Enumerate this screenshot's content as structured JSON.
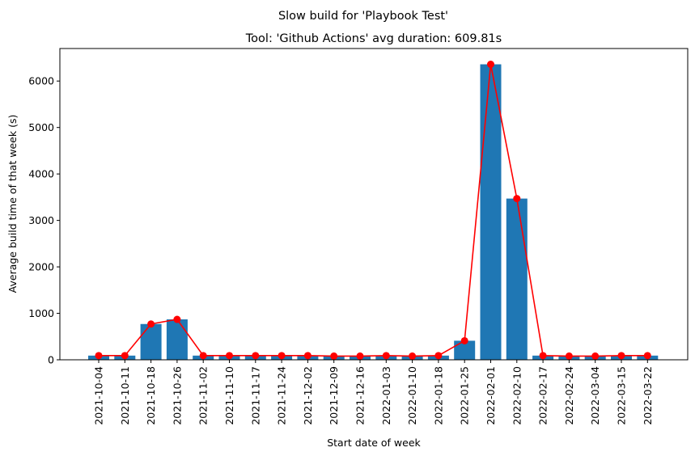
{
  "chart_data": {
    "type": "bar",
    "suptitle": "Slow build for 'Playbook Test'",
    "title": "Tool: 'Github Actions' avg duration: 609.81s",
    "xlabel": "Start date of week",
    "ylabel": "Average build time of that week (s)",
    "ylim": [
      0,
      6700
    ],
    "yticks": [
      0,
      1000,
      2000,
      3000,
      4000,
      5000,
      6000
    ],
    "grid": false,
    "categories": [
      "2021-10-04",
      "2021-10-11",
      "2021-10-18",
      "2021-10-26",
      "2021-11-02",
      "2021-11-10",
      "2021-11-17",
      "2021-11-24",
      "2021-12-02",
      "2021-12-09",
      "2021-12-16",
      "2022-01-03",
      "2022-01-10",
      "2022-01-18",
      "2022-01-25",
      "2022-02-01",
      "2022-02-10",
      "2022-02-17",
      "2022-02-24",
      "2022-03-04",
      "2022-03-15",
      "2022-03-22"
    ],
    "series": [
      {
        "type": "bar",
        "color": "#1f77b4",
        "values": [
          90,
          90,
          770,
          870,
          90,
          90,
          90,
          90,
          90,
          80,
          80,
          90,
          80,
          90,
          410,
          6360,
          3470,
          90,
          80,
          80,
          90,
          90
        ]
      },
      {
        "type": "line",
        "color": "#ff0000",
        "marker": "circle",
        "values": [
          90,
          90,
          770,
          870,
          90,
          90,
          90,
          90,
          90,
          80,
          80,
          90,
          80,
          90,
          410,
          6360,
          3470,
          90,
          80,
          80,
          90,
          90
        ]
      }
    ]
  }
}
